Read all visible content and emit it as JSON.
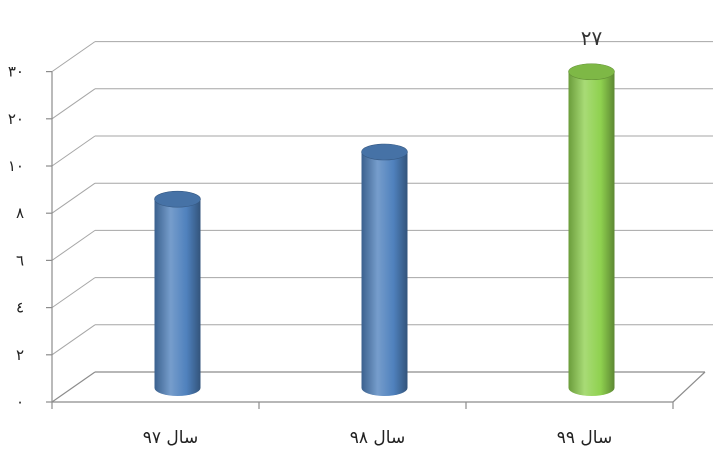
{
  "chart_data": {
    "type": "bar",
    "style": "3d-cylinder",
    "categories": [
      "سال ۹۷",
      "سال ۹۸",
      "سال ۹۹"
    ],
    "values": [
      8,
      10,
      27
    ],
    "bar_colors": [
      "#4f81bd",
      "#4f81bd",
      "#8fd14f"
    ],
    "data_labels": [
      "",
      "",
      "۲۷"
    ],
    "y_tick_values": [
      0,
      2,
      4,
      6,
      8,
      10,
      20,
      30
    ],
    "y_tick_labels": [
      "۰",
      "۲",
      "٤",
      "٦",
      "۸",
      "۱۰",
      "۲۰",
      "۳۰"
    ],
    "ylim": [
      0,
      30
    ],
    "axis_scale": "non-linear (evenly spaced ticks)",
    "grid": true,
    "legend": "none",
    "title": "",
    "xlabel": "",
    "ylabel": ""
  }
}
